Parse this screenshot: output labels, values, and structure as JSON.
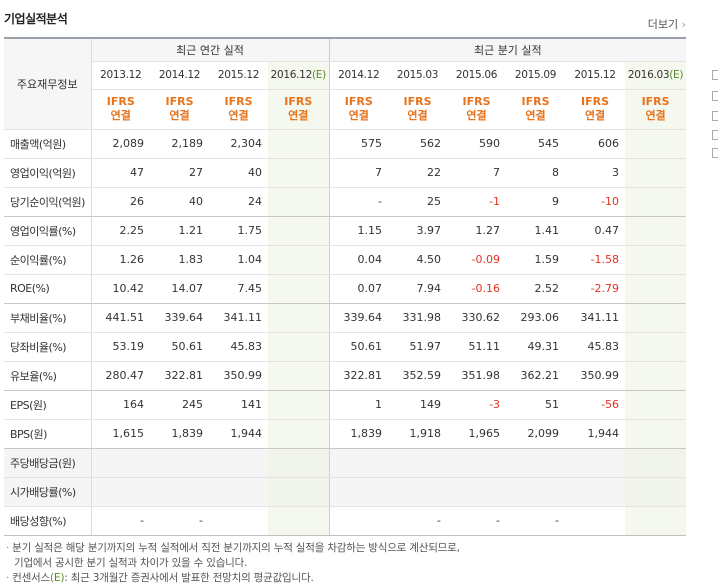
{
  "header": {
    "title": "기업실적분석",
    "more_label": "더보기",
    "more_arrow": "›"
  },
  "table": {
    "row_header": "주요재무정보",
    "annual_label": "최근 연간 실적",
    "quarter_label": "최근 분기 실적",
    "annual_periods": [
      {
        "label": "2013.12",
        "est": false
      },
      {
        "label": "2014.12",
        "est": false
      },
      {
        "label": "2015.12",
        "est": false
      },
      {
        "label": "2016.12",
        "est": true
      }
    ],
    "quarter_periods": [
      {
        "label": "2014.12",
        "est": false
      },
      {
        "label": "2015.03",
        "est": false
      },
      {
        "label": "2015.06",
        "est": false
      },
      {
        "label": "2015.09",
        "est": false
      },
      {
        "label": "2015.12",
        "est": false
      },
      {
        "label": "2016.03",
        "est": true
      }
    ],
    "est_mark": "(E)",
    "ifrs_line1": "IFRS",
    "ifrs_line2": "연결",
    "rows": [
      {
        "label": "매출액(억원)",
        "annual": [
          "2,089",
          "2,189",
          "2,304",
          ""
        ],
        "quarter": [
          "575",
          "562",
          "590",
          "545",
          "606",
          ""
        ]
      },
      {
        "label": "영업이익(억원)",
        "annual": [
          "47",
          "27",
          "40",
          ""
        ],
        "quarter": [
          "7",
          "22",
          "7",
          "8",
          "3",
          ""
        ]
      },
      {
        "label": "당기순이익(억원)",
        "annual": [
          "26",
          "40",
          "24",
          ""
        ],
        "quarter": [
          "-",
          "25",
          "-1",
          "9",
          "-10",
          ""
        ],
        "section_end": true
      },
      {
        "label": "영업이익률(%)",
        "annual": [
          "2.25",
          "1.21",
          "1.75",
          ""
        ],
        "quarter": [
          "1.15",
          "3.97",
          "1.27",
          "1.41",
          "0.47",
          ""
        ]
      },
      {
        "label": "순이익률(%)",
        "annual": [
          "1.26",
          "1.83",
          "1.04",
          ""
        ],
        "quarter": [
          "0.04",
          "4.50",
          "-0.09",
          "1.59",
          "-1.58",
          ""
        ]
      },
      {
        "label": "ROE(%)",
        "annual": [
          "10.42",
          "14.07",
          "7.45",
          ""
        ],
        "quarter": [
          "0.07",
          "7.94",
          "-0.16",
          "2.52",
          "-2.79",
          ""
        ],
        "section_end": true
      },
      {
        "label": "부채비율(%)",
        "annual": [
          "441.51",
          "339.64",
          "341.11",
          ""
        ],
        "quarter": [
          "339.64",
          "331.98",
          "330.62",
          "293.06",
          "341.11",
          ""
        ]
      },
      {
        "label": "당좌비율(%)",
        "annual": [
          "53.19",
          "50.61",
          "45.83",
          ""
        ],
        "quarter": [
          "50.61",
          "51.97",
          "51.11",
          "49.31",
          "45.83",
          ""
        ]
      },
      {
        "label": "유보율(%)",
        "annual": [
          "280.47",
          "322.81",
          "350.99",
          ""
        ],
        "quarter": [
          "322.81",
          "352.59",
          "351.98",
          "362.21",
          "350.99",
          ""
        ],
        "section_end": true
      },
      {
        "label": "EPS(원)",
        "annual": [
          "164",
          "245",
          "141",
          ""
        ],
        "quarter": [
          "1",
          "149",
          "-3",
          "51",
          "-56",
          ""
        ]
      },
      {
        "label": "BPS(원)",
        "annual": [
          "1,615",
          "1,839",
          "1,944",
          ""
        ],
        "quarter": [
          "1,839",
          "1,918",
          "1,965",
          "2,099",
          "1,944",
          ""
        ],
        "section_end": true
      },
      {
        "label": "주당배당금(원)",
        "annual": [
          "",
          "",
          "",
          ""
        ],
        "quarter": [
          "",
          "",
          "",
          "",
          "",
          ""
        ],
        "empty": true
      },
      {
        "label": "시가배당률(%)",
        "annual": [
          "",
          "",
          "",
          ""
        ],
        "quarter": [
          "",
          "",
          "",
          "",
          "",
          ""
        ],
        "empty": true
      },
      {
        "label": "배당성향(%)",
        "annual": [
          "-",
          "-",
          "",
          ""
        ],
        "quarter": [
          "",
          "-",
          "-",
          "-",
          "",
          ""
        ]
      }
    ]
  },
  "notes": {
    "bullet": "·",
    "line1": "분기 실적은 해당 분기까지의 누적 실적에서 직전 분기까지의 누적 실적을 차감하는 방식으로 계산되므로,",
    "line2": "기업에서 공시한 분기 실적과 차이가 있을 수 있습니다.",
    "line3_prefix": "컨센서스",
    "line3_mark": "(E)",
    "line3_rest": ": 최근 3개월간 증권사에서 발표한 전망치의 평균값입니다."
  }
}
